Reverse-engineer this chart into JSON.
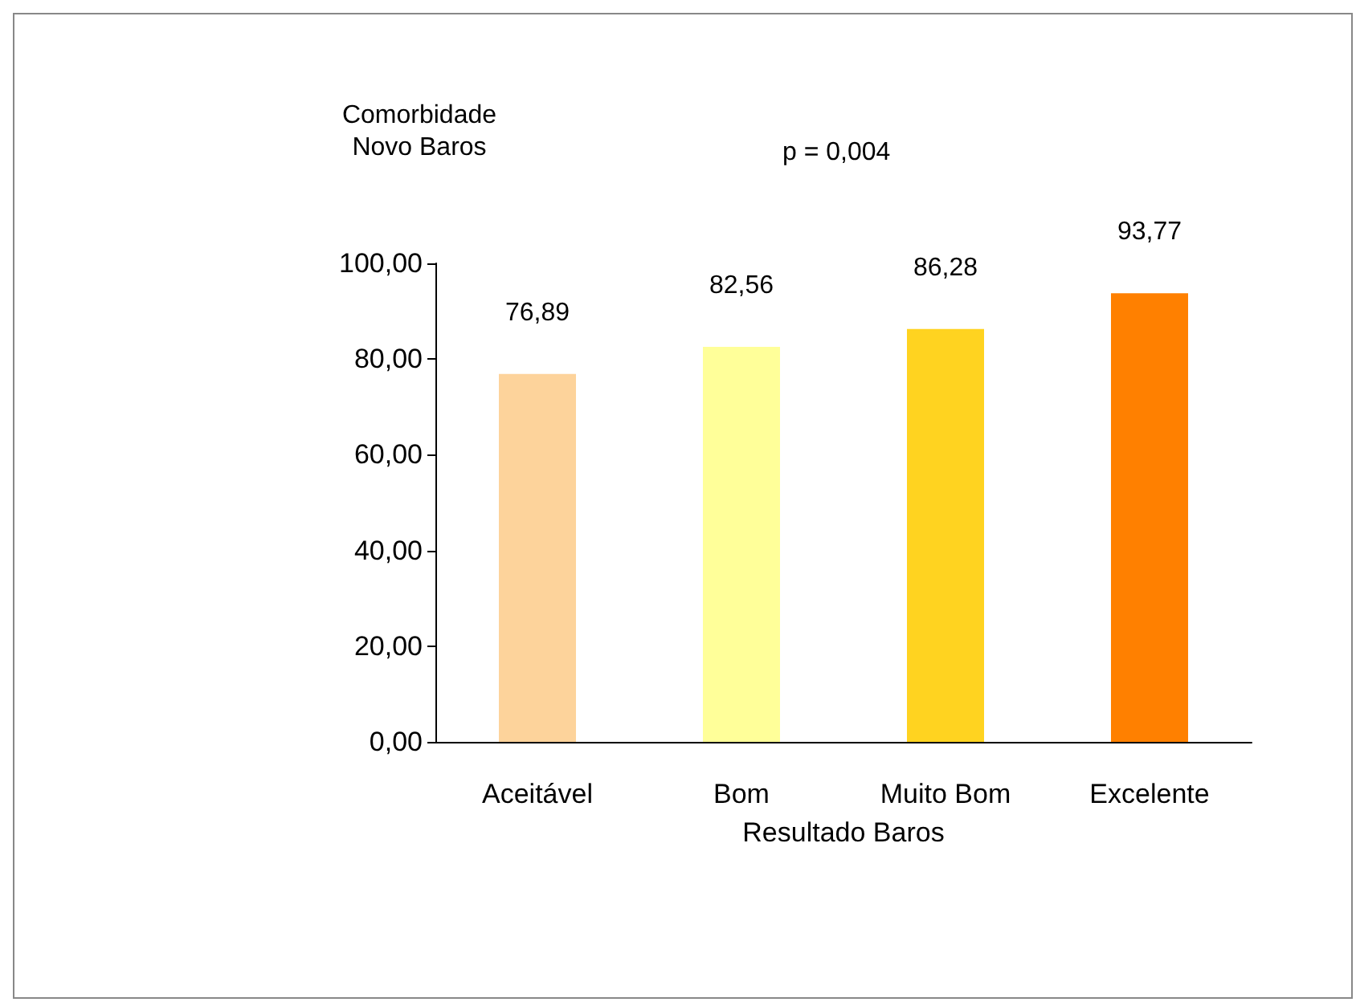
{
  "chart_data": {
    "type": "bar",
    "xlabel": "Resultado Baros",
    "ylabel": "Comorbidade\nNovo Baros",
    "categories": [
      "Aceitável",
      "Bom",
      "Muito Bom",
      "Excelente"
    ],
    "values": [
      76.89,
      82.56,
      86.28,
      93.77
    ],
    "colors": [
      "#fdd39b",
      "#ffff99",
      "#ffd320",
      "#ff8000"
    ],
    "value_labels": [
      "76,89",
      "82,56",
      "86,28",
      "93,77"
    ],
    "ylim": [
      0,
      100
    ],
    "yticks": [
      {
        "value": 0,
        "label": "0,00"
      },
      {
        "value": 20,
        "label": "20,00"
      },
      {
        "value": 40,
        "label": "40,00"
      },
      {
        "value": 60,
        "label": "60,00"
      },
      {
        "value": 80,
        "label": "80,00"
      },
      {
        "value": 100,
        "label": "100,00"
      }
    ],
    "annotations": [
      "p = 0,004"
    ]
  }
}
